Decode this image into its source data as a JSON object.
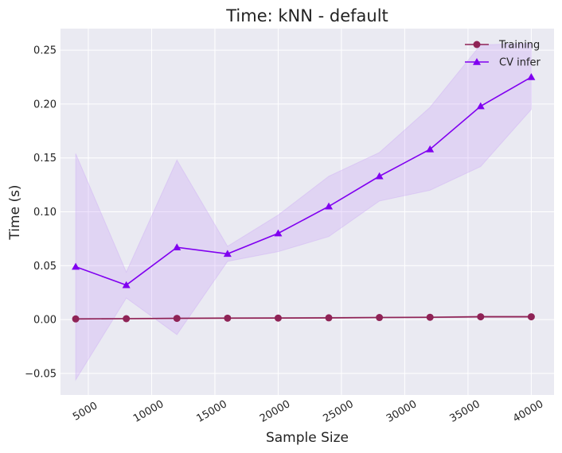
{
  "chart_data": {
    "type": "line",
    "title": "Time: kNN - default",
    "xlabel": "Sample Size",
    "ylabel": "Time (s)",
    "xlim": [
      2800,
      41800
    ],
    "ylim": [
      -0.07,
      0.27
    ],
    "xticks": [
      5000,
      10000,
      15000,
      20000,
      25000,
      30000,
      35000,
      40000
    ],
    "xtick_labels": [
      "5000",
      "10000",
      "15000",
      "20000",
      "25000",
      "30000",
      "35000",
      "40000"
    ],
    "yticks": [
      -0.05,
      0.0,
      0.05,
      0.1,
      0.15,
      0.2,
      0.25
    ],
    "ytick_labels": [
      "−0.05",
      "0.00",
      "0.05",
      "0.10",
      "0.15",
      "0.20",
      "0.25"
    ],
    "grid": true,
    "legend_position": "top-right",
    "x": [
      4000,
      8000,
      12000,
      16000,
      20000,
      24000,
      28000,
      32000,
      36000,
      40000
    ],
    "series": [
      {
        "name": "Training",
        "color": "#8f2356",
        "marker": "circle",
        "values": [
          0.0006,
          0.0008,
          0.0011,
          0.0013,
          0.0014,
          0.0016,
          0.0019,
          0.0021,
          0.0026,
          0.0026
        ],
        "band_lower": [
          0.0002,
          0.0004,
          0.0007,
          0.0009,
          0.001,
          0.0012,
          0.0015,
          0.0017,
          0.0021,
          0.0021
        ],
        "band_upper": [
          0.001,
          0.0012,
          0.0015,
          0.0017,
          0.0018,
          0.002,
          0.0023,
          0.0025,
          0.0031,
          0.0031
        ]
      },
      {
        "name": "CV infer",
        "color": "#8000f0",
        "band_color": "#c9a3f5",
        "marker": "triangle",
        "values": [
          0.049,
          0.032,
          0.067,
          0.061,
          0.08,
          0.105,
          0.133,
          0.158,
          0.198,
          0.225
        ],
        "band_lower": [
          -0.056,
          0.02,
          -0.014,
          0.054,
          0.063,
          0.077,
          0.11,
          0.12,
          0.142,
          0.195
        ],
        "band_upper": [
          0.154,
          0.044,
          0.148,
          0.068,
          0.097,
          0.133,
          0.155,
          0.197,
          0.255,
          0.256
        ]
      }
    ]
  }
}
